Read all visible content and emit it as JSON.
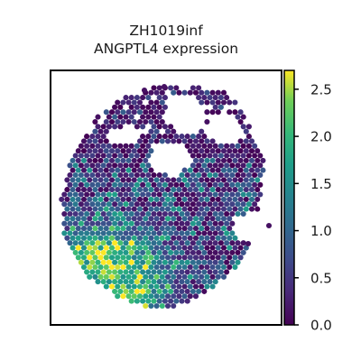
{
  "chart_data": {
    "type": "heatmap",
    "title": "ZH1019inf",
    "subtitle": "ANGPTL4 expression",
    "xlabel": "",
    "ylabel": "",
    "colormap": "viridis",
    "colorbar": {
      "range": [
        0.0,
        2.7
      ],
      "ticks": [
        0.0,
        0.5,
        1.0,
        1.5,
        2.0,
        2.5
      ],
      "tick_labels": [
        "0.0",
        "0.5",
        "1.0",
        "1.5",
        "2.0",
        "2.5"
      ]
    },
    "grid": false,
    "legend": "colorbar right",
    "spot_summary": {
      "background_value": 0.0,
      "high_expression_region": "lower-left",
      "max_value": 2.7
    }
  },
  "colors": {
    "viridis_low": "#440154",
    "viridis_mid": "#21918c",
    "viridis_high": "#fde725"
  }
}
